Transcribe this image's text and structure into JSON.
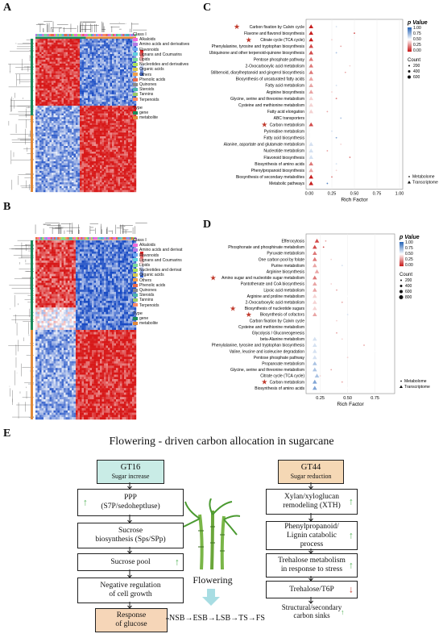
{
  "panels": {
    "A": "A",
    "B": "B",
    "C": "C",
    "D": "D",
    "E": "E"
  },
  "heatmap_A": {
    "class_legend_title": "Class I",
    "type_label": "Type",
    "classes": [
      {
        "name": "Alkaloids",
        "color": "#f06bd8"
      },
      {
        "name": "Amino acids and derivatives",
        "color": "#b27ae6"
      },
      {
        "name": "Flavonoids",
        "color": "#6aa6f0"
      },
      {
        "name": "Lignans and Coumarins",
        "color": "#5fd0e0"
      },
      {
        "name": "Lipids",
        "color": "#77d89a"
      },
      {
        "name": "Nucleotides and derivatives",
        "color": "#a9e05a"
      },
      {
        "name": "Organic acids",
        "color": "#d7c84a"
      },
      {
        "name": "Others",
        "color": "#f0a04a"
      },
      {
        "name": "Phenolic acids",
        "color": "#e86a4a"
      },
      {
        "name": "Quinones",
        "color": "#8a8a8a"
      },
      {
        "name": "Steroids",
        "color": "#4db6ac"
      },
      {
        "name": "Tannins",
        "color": "#9ccc65"
      },
      {
        "name": "Terpenoids",
        "color": "#ff8a65"
      }
    ],
    "scale_ticks": [
      "0.5",
      "0",
      "-0.5"
    ],
    "type_legend_title": "Type",
    "types": [
      {
        "name": "gene",
        "color": "#1b8a5a"
      },
      {
        "name": "metabolite",
        "color": "#e08a3a"
      }
    ],
    "side_label": "Type"
  },
  "heatmap_B": {
    "class_legend_title": "Class I",
    "type_label": "Type",
    "classes": [
      {
        "name": "Alkaloids",
        "color": "#f06bd8"
      },
      {
        "name": "Amino acids and derivat",
        "color": "#b27ae6"
      },
      {
        "name": "Flavonoids",
        "color": "#6aa6f0"
      },
      {
        "name": "Lignans and Coumarins",
        "color": "#5fd0e0"
      },
      {
        "name": "Lipids",
        "color": "#77d89a"
      },
      {
        "name": "Nucleotides and derivat",
        "color": "#a9e05a"
      },
      {
        "name": "Organic acids",
        "color": "#d7c84a"
      },
      {
        "name": "Others",
        "color": "#f0a04a"
      },
      {
        "name": "Phenolic acids",
        "color": "#e86a4a"
      },
      {
        "name": "Quinones",
        "color": "#8a8a8a"
      },
      {
        "name": "Steroids",
        "color": "#4db6ac"
      },
      {
        "name": "Tannins",
        "color": "#9ccc65"
      },
      {
        "name": "Terpenoids",
        "color": "#ff8a65"
      }
    ],
    "scale_ticks": [
      "0.5",
      "0",
      "-0.5"
    ],
    "type_legend_title": "Type",
    "types": [
      {
        "name": "gene",
        "color": "#1b8a5a"
      },
      {
        "name": "metabolite",
        "color": "#e08a3a"
      }
    ],
    "side_label": "Type"
  },
  "chart_data": [
    {
      "type": "scatter",
      "panel": "C",
      "xlabel": "Rich Factor",
      "xlim": [
        0,
        1
      ],
      "xticks": [
        "0.00",
        "0.25",
        "0.50",
        "0.75",
        "1.00"
      ],
      "pvalue_title": "p Value",
      "pvalue_ticks": [
        "1.00",
        "0.75",
        "0.50",
        "0.25",
        "0.00"
      ],
      "count_title": "Count",
      "count_ticks": [
        "200",
        "400",
        "600"
      ],
      "shape_legend": [
        "Metabolome",
        "Transcriptome"
      ],
      "pathways": [
        {
          "name": "Carbon fixation by Calvin cycle",
          "star": true,
          "tr": 0.02,
          "tr_p": 0.0,
          "met": 0.3,
          "met_p": 0.6
        },
        {
          "name": "Flavone and flavonol biosynthesis",
          "star": false,
          "tr": 0.02,
          "tr_p": 0.0,
          "met": 0.5,
          "met_p": 0.1
        },
        {
          "name": "Citrate cycle (TCA cycle)",
          "star": true,
          "tr": 0.02,
          "tr_p": 0.0,
          "met": 0.25,
          "met_p": 0.4
        },
        {
          "name": "Phenylalanine, tyrosine and tryptophan biosynthesis",
          "star": false,
          "tr": 0.02,
          "tr_p": 0.1,
          "met": 0.35,
          "met_p": 0.3
        },
        {
          "name": "Ubiquinone and other terpenoid-quinone biosynthesis",
          "star": false,
          "tr": 0.02,
          "tr_p": 0.1,
          "met": 0.3,
          "met_p": 0.7
        },
        {
          "name": "Pentose phosphate pathway",
          "star": false,
          "tr": 0.02,
          "tr_p": 0.2,
          "met": 0.3,
          "met_p": 0.5
        },
        {
          "name": "2-Oxocarboxylic acid metabolism",
          "star": false,
          "tr": 0.02,
          "tr_p": 0.2,
          "met": 0.45,
          "met_p": 0.4
        },
        {
          "name": "Stilbenoid, diarylheptanoid and gingerol biosynthesis",
          "star": false,
          "tr": 0.02,
          "tr_p": 0.2,
          "met": 0.4,
          "met_p": 0.3
        },
        {
          "name": "Biosynthesis of unsaturated fatty acids",
          "star": false,
          "tr": 0.02,
          "tr_p": 0.3,
          "met": 0.35,
          "met_p": 0.5
        },
        {
          "name": "Fatty acid metabolism",
          "star": false,
          "tr": 0.02,
          "tr_p": 0.3,
          "met": 0.3,
          "met_p": 0.6
        },
        {
          "name": "Arginine biosynthesis",
          "star": false,
          "tr": 0.02,
          "tr_p": 0.3,
          "met": 0.25,
          "met_p": 0.4
        },
        {
          "name": "Glycine, serine and threonine metabolism",
          "star": false,
          "tr": 0.02,
          "tr_p": 0.4,
          "met": 0.3,
          "met_p": 0.2
        },
        {
          "name": "Cysteine and methionine metabolism",
          "star": false,
          "tr": 0.02,
          "tr_p": 0.4,
          "met": 0.2,
          "met_p": 0.5
        },
        {
          "name": "Fatty acid elongation",
          "star": false,
          "tr": 0.02,
          "tr_p": 0.4,
          "met": 0.2,
          "met_p": 0.3
        },
        {
          "name": "ABC transporters",
          "star": false,
          "tr": 0.02,
          "tr_p": 0.5,
          "met": 0.35,
          "met_p": 0.7
        },
        {
          "name": "Carbon metabolism",
          "star": true,
          "tr": 0.02,
          "tr_p": 0.1,
          "met": 0.3,
          "met_p": 0.5
        },
        {
          "name": "Pyrimidine metabolism",
          "star": false,
          "tr": 0.02,
          "tr_p": 0.5,
          "met": 0.25,
          "met_p": 0.6
        },
        {
          "name": "Fatty acid biosynthesis",
          "star": false,
          "tr": 0.02,
          "tr_p": 0.5,
          "met": 0.3,
          "met_p": 0.8
        },
        {
          "name": "Alanine, aspartate and glutamate metabolism",
          "star": false,
          "tr": 0.02,
          "tr_p": 0.6,
          "met": 0.35,
          "met_p": 0.4
        },
        {
          "name": "Nucleotide metabolism",
          "star": false,
          "tr": 0.02,
          "tr_p": 0.6,
          "met": 0.2,
          "met_p": 0.3
        },
        {
          "name": "Flavonoid biosynthesis",
          "star": false,
          "tr": 0.02,
          "tr_p": 0.6,
          "met": 0.45,
          "met_p": 0.2
        },
        {
          "name": "Biosynthesis of amino acids",
          "star": false,
          "tr": 0.02,
          "tr_p": 0.2,
          "met": 0.3,
          "met_p": 0.6
        },
        {
          "name": "Phenylpropanoid biosynthesis",
          "star": false,
          "tr": 0.02,
          "tr_p": 0.3,
          "met": 0.3,
          "met_p": 0.4
        },
        {
          "name": "Biosynthesis of secondary metabolites",
          "star": false,
          "tr": 0.02,
          "tr_p": 0.0,
          "met": 0.25,
          "met_p": 0.2
        },
        {
          "name": "Metabolic pathways",
          "star": false,
          "tr": 0.02,
          "tr_p": 0.0,
          "met": 0.2,
          "met_p": 0.9
        }
      ]
    },
    {
      "type": "scatter",
      "panel": "D",
      "xlabel": "Rich Factor",
      "xlim": [
        0.15,
        0.9
      ],
      "xticks": [
        "0.25",
        "0.50",
        "0.75"
      ],
      "pvalue_title": "p Value",
      "pvalue_ticks": [
        "1.00",
        "0.75",
        "0.50",
        "0.25",
        "0.00"
      ],
      "count_title": "Count",
      "count_ticks": [
        "200",
        "400",
        "600",
        "800"
      ],
      "shape_legend": [
        "Metabolome",
        "Transcriptome"
      ],
      "pathways": [
        {
          "name": "Efferocytosis",
          "star": false,
          "tr": 0.22,
          "tr_p": 0.1,
          "met": 0.3,
          "met_p": 0.3
        },
        {
          "name": "Phosphonate and phosphinate metabolism",
          "star": false,
          "tr": 0.2,
          "tr_p": 0.1,
          "met": 0.28,
          "met_p": 0.1
        },
        {
          "name": "Pyruvate metabolism",
          "star": false,
          "tr": 0.2,
          "tr_p": 0.2,
          "met": 0.4,
          "met_p": 0.5
        },
        {
          "name": "One carbon pool by folate",
          "star": false,
          "tr": 0.2,
          "tr_p": 0.2,
          "met": 0.35,
          "met_p": 0.4
        },
        {
          "name": "Purine metabolism",
          "star": false,
          "tr": 0.2,
          "tr_p": 0.3,
          "met": 0.45,
          "met_p": 0.6
        },
        {
          "name": "Arginine biosynthesis",
          "star": false,
          "tr": 0.22,
          "tr_p": 0.3,
          "met": 0.3,
          "met_p": 0.5
        },
        {
          "name": "Amino sugar and nucleotide sugar metabolism",
          "star": true,
          "tr": 0.2,
          "tr_p": 0.2,
          "met": 0.45,
          "met_p": 0.5
        },
        {
          "name": "Pantothenate and CoA biosynthesis",
          "star": false,
          "tr": 0.2,
          "tr_p": 0.3,
          "met": 0.35,
          "met_p": 0.4
        },
        {
          "name": "Lipoic acid metabolism",
          "star": false,
          "tr": 0.2,
          "tr_p": 0.3,
          "met": 0.4,
          "met_p": 0.3
        },
        {
          "name": "Arginine and proline metabolism",
          "star": false,
          "tr": 0.2,
          "tr_p": 0.4,
          "met": 0.5,
          "met_p": 0.5
        },
        {
          "name": "2-Oxocarboxylic acid metabolism",
          "star": false,
          "tr": 0.2,
          "tr_p": 0.4,
          "met": 0.45,
          "met_p": 0.3
        },
        {
          "name": "Biosynthesis of nucleotide sugars",
          "star": true,
          "tr": 0.2,
          "tr_p": 0.4,
          "met": 0.45,
          "met_p": 0.5
        },
        {
          "name": "Biosynthesis of cofactors",
          "star": true,
          "tr": 0.2,
          "tr_p": 0.3,
          "met": 0.5,
          "met_p": 0.6
        },
        {
          "name": "Carbon fixation by Calvin cycle",
          "star": false,
          "tr": 0.2,
          "tr_p": 0.5,
          "met": 0.4,
          "met_p": 0.4
        },
        {
          "name": "Cysteine and methionine metabolism",
          "star": false,
          "tr": 0.2,
          "tr_p": 0.5,
          "met": 0.35,
          "met_p": 0.5
        },
        {
          "name": "Glycolysis / Gluconeogenesis",
          "star": false,
          "tr": 0.2,
          "tr_p": 0.5,
          "met": 0.4,
          "met_p": 0.3
        },
        {
          "name": "beta-Alanine metabolism",
          "star": false,
          "tr": 0.2,
          "tr_p": 0.6,
          "met": 0.45,
          "met_p": 0.4
        },
        {
          "name": "Phenylalanine, tyrosine and tryptophan biosynthesis",
          "star": false,
          "tr": 0.2,
          "tr_p": 0.6,
          "met": 0.65,
          "met_p": 0.3
        },
        {
          "name": "Valine, leucine and isoleucine degradation",
          "star": false,
          "tr": 0.2,
          "tr_p": 0.6,
          "met": 0.75,
          "met_p": 0.5
        },
        {
          "name": "Pentose phosphate pathway",
          "star": false,
          "tr": 0.2,
          "tr_p": 0.6,
          "met": 0.5,
          "met_p": 0.4
        },
        {
          "name": "Propanoate metabolism",
          "star": false,
          "tr": 0.2,
          "tr_p": 0.7,
          "met": 0.45,
          "met_p": 0.5
        },
        {
          "name": "Glycine, serine and threonine metabolism",
          "star": false,
          "tr": 0.2,
          "tr_p": 0.7,
          "met": 0.35,
          "met_p": 0.3
        },
        {
          "name": "Citrate cycle (TCA cycle)",
          "star": false,
          "tr": 0.22,
          "tr_p": 0.7,
          "met": 0.25,
          "met_p": 0.4
        },
        {
          "name": "Carbon metabolism",
          "star": true,
          "tr": 0.2,
          "tr_p": 0.8,
          "met": 0.45,
          "met_p": 0.3
        },
        {
          "name": "Biosynthesis of amino acids",
          "star": false,
          "tr": 0.2,
          "tr_p": 0.8,
          "met": 0.5,
          "met_p": 0.5
        }
      ]
    }
  ],
  "diagram_E": {
    "title": "Flowering  -  driven carbon allocation in sugarcane",
    "left_header": "GT16",
    "left_sub": "Sugar increase",
    "right_header": "GT44",
    "right_sub": "Sugar reduction",
    "left_boxes": [
      "PPP\n(S7P/sedoheptluse)",
      "Sucrose\nbiosynthesis (Sps/SPp)",
      "Sucrose pool",
      "Negative regulation\nof cell growth"
    ],
    "response_box": "Response\nof glucose",
    "right_boxes": [
      "Xylan/xyloglucan\nremodeling (XTH)",
      "Phenylpropanoid/\nLignin catabolic\nprocess",
      "Trehalose metabolism\nin response to stress",
      "Trehalose/T6P"
    ],
    "right_footer": "Structural/secondary\ncarbon sinks",
    "center_label": "Flowering",
    "stage_text": "NSB→ESB→LSB→TS→FS",
    "up_arrow": "↑",
    "down_arrow": "↓"
  }
}
